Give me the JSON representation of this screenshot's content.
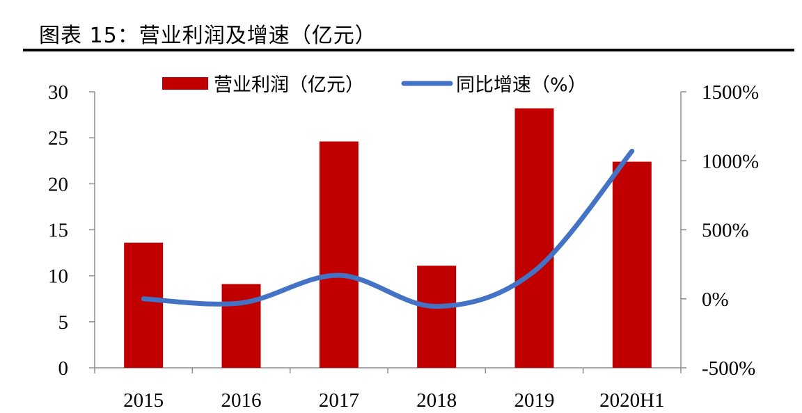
{
  "figure": {
    "title": "图表 15：营业利润及增速（亿元）"
  },
  "chart_data": {
    "type": "bar",
    "categories": [
      "2015",
      "2016",
      "2017",
      "2018",
      "2019",
      "2020H1"
    ],
    "series": [
      {
        "name": "营业利润（亿元）",
        "type": "bar",
        "axis": "left",
        "color": "#C00000",
        "values": [
          13.6,
          9.1,
          24.6,
          11.1,
          28.2,
          22.4
        ]
      },
      {
        "name": "同比增速（%）",
        "type": "line",
        "axis": "right",
        "color": "#4472C4",
        "smooth": true,
        "values": [
          0,
          -30,
          170,
          -55,
          200,
          1070
        ]
      }
    ],
    "y_left": {
      "lim": [
        0,
        30
      ],
      "ticks": [
        0,
        5,
        10,
        15,
        20,
        25,
        30
      ],
      "tick_labels": [
        "0",
        "5",
        "10",
        "15",
        "20",
        "25",
        "30"
      ]
    },
    "y_right": {
      "lim": [
        -500,
        1500
      ],
      "ticks": [
        -500,
        0,
        500,
        1000,
        1500
      ],
      "tick_labels": [
        "-500%",
        "0%",
        "500%",
        "1000%",
        "1500%"
      ]
    },
    "legend": {
      "position": "top"
    },
    "grid": false
  }
}
